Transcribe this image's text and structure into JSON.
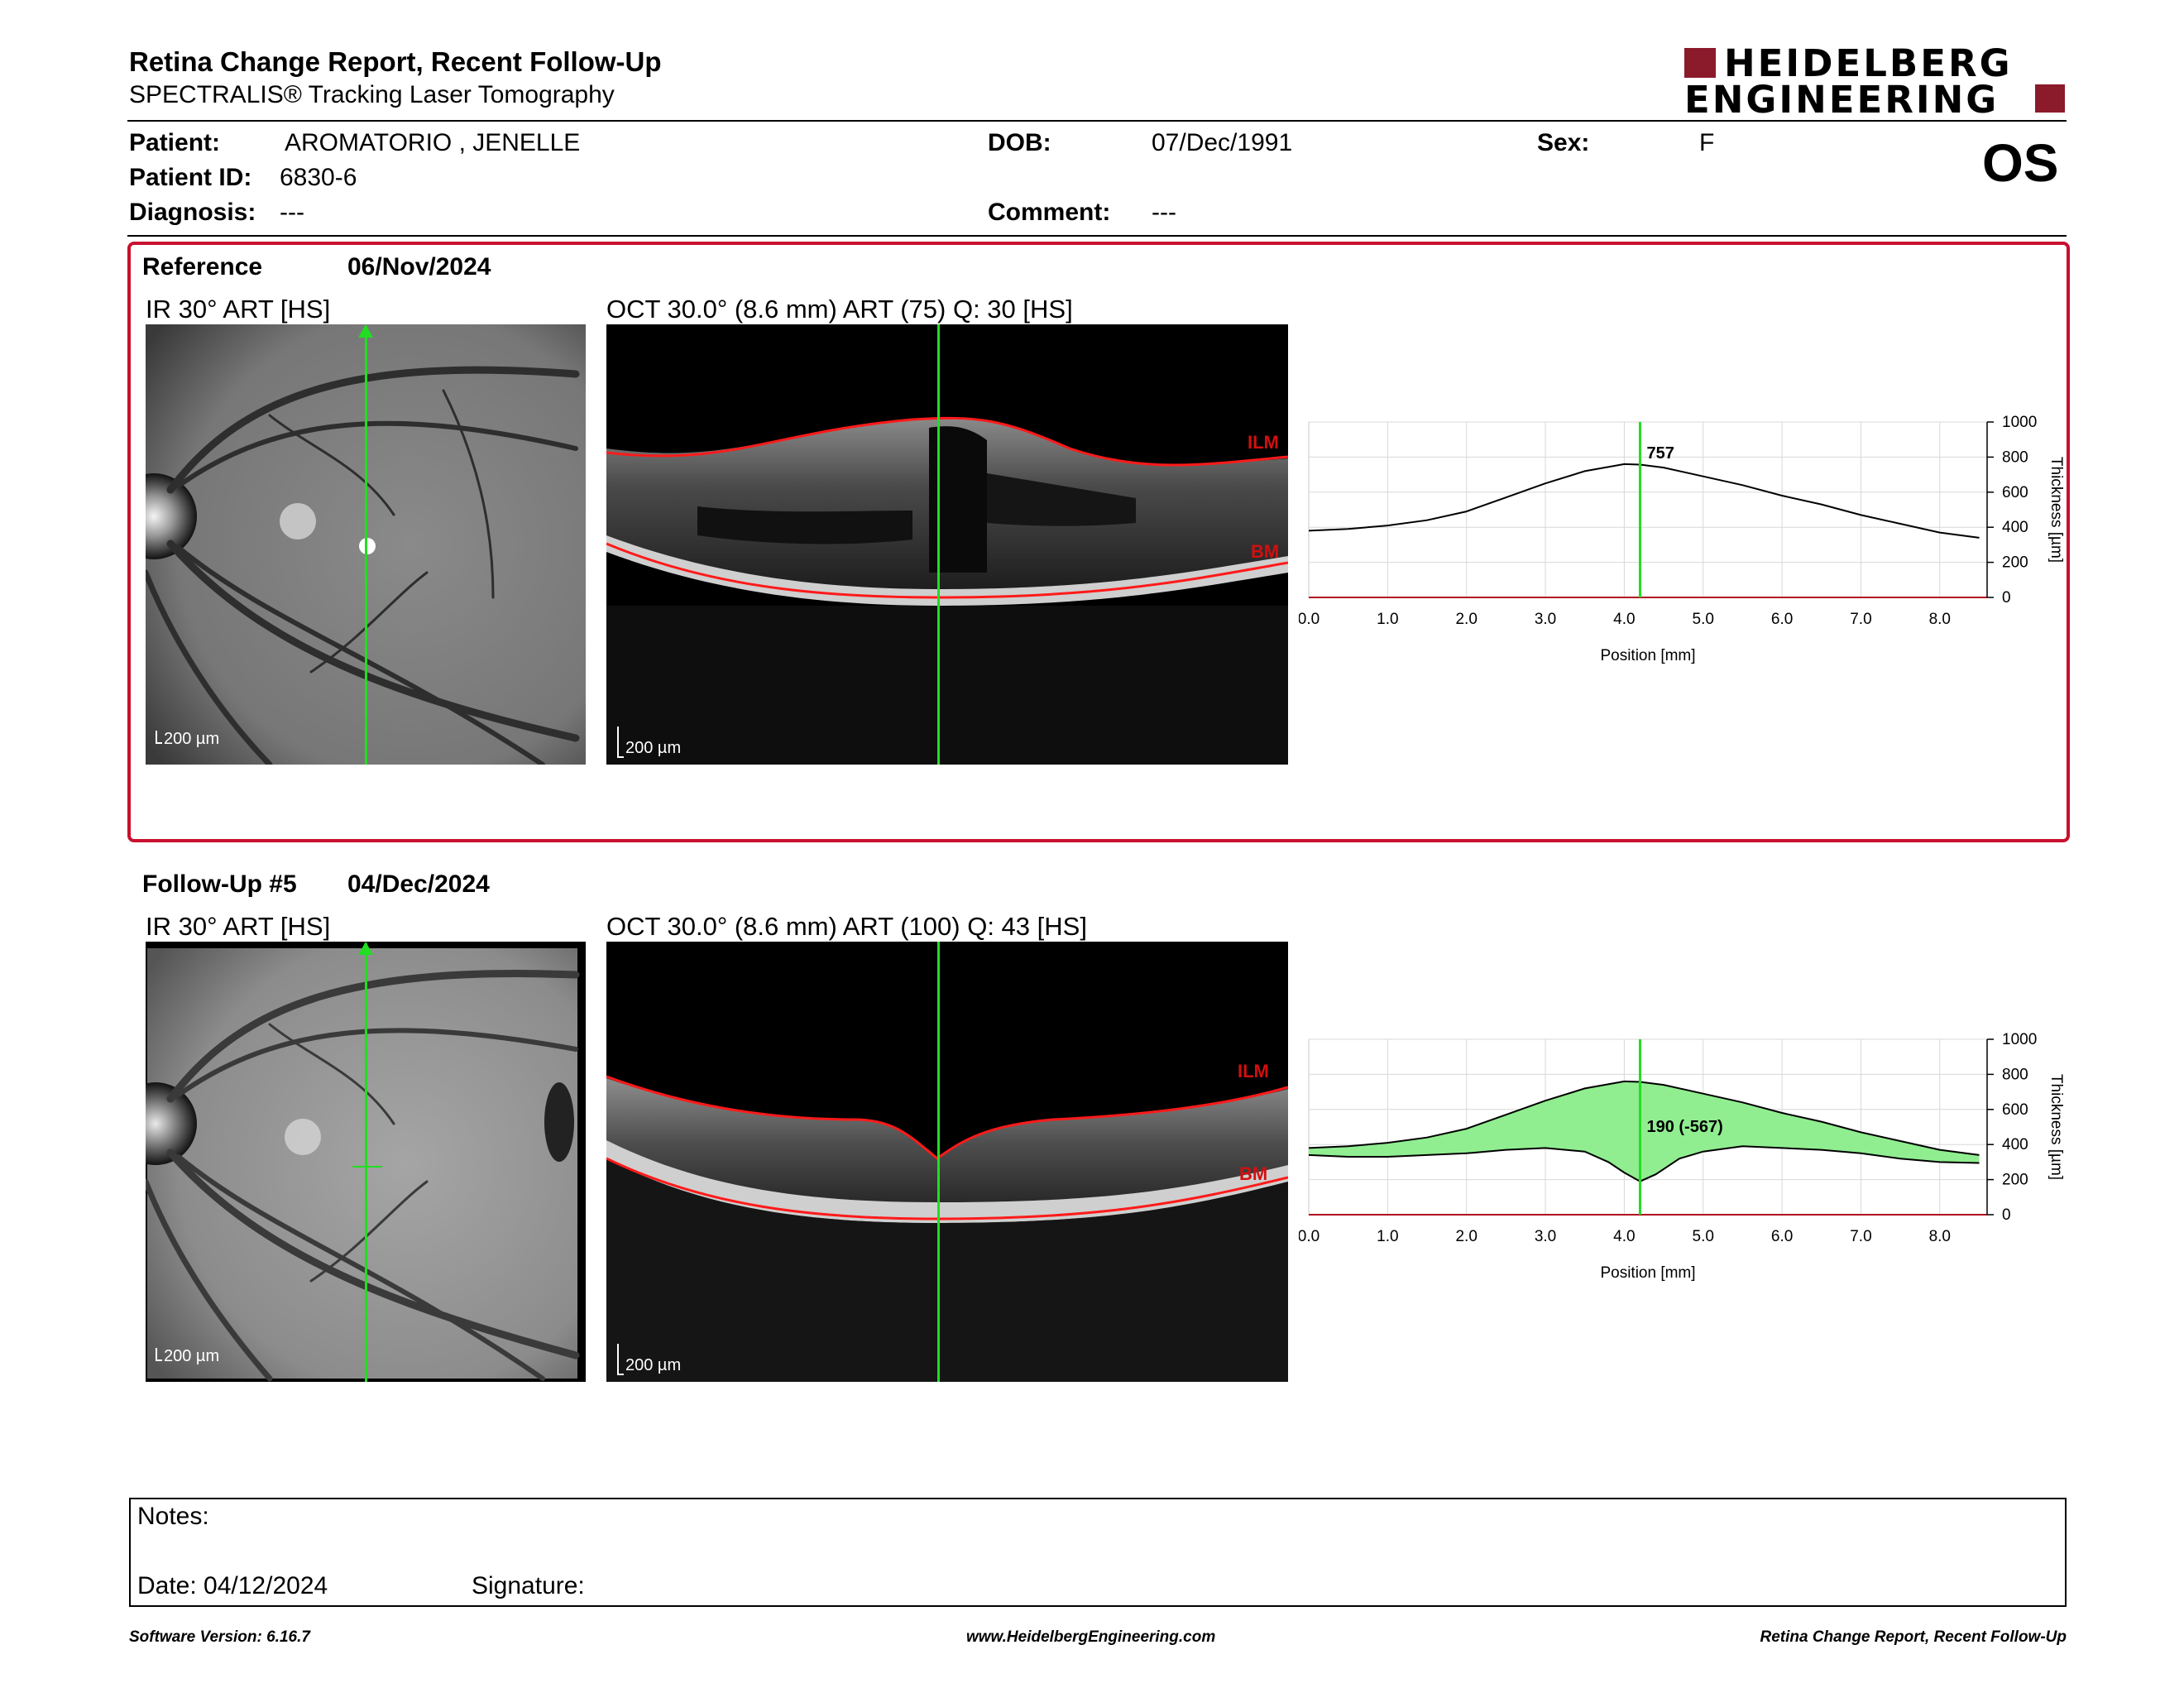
{
  "header": {
    "title": "Retina Change Report, Recent Follow-Up",
    "subtitle": "SPECTRALIS® Tracking Laser Tomography",
    "logo_line1": "HEIDELBERG",
    "logo_line2": "ENGINEERING",
    "eye": "OS"
  },
  "patient": {
    "patient_label": "Patient:",
    "patient_value": "AROMATORIO , JENELLE",
    "dob_label": "DOB:",
    "dob_value": "07/Dec/1991",
    "sex_label": "Sex:",
    "sex_value": "F",
    "id_label": "Patient ID:",
    "id_value": "6830-6",
    "diagnosis_label": "Diagnosis:",
    "diagnosis_value": "---",
    "comment_label": "Comment:",
    "comment_value": "---"
  },
  "reference": {
    "label": "Reference",
    "date": "06/Nov/2024",
    "ir_label": "IR 30° ART [HS]",
    "oct_label": "OCT 30.0° (8.6 mm) ART (75) Q: 30 [HS]",
    "scale_label": "200 µm",
    "layer_top": "ILM",
    "layer_bottom": "BM"
  },
  "followup": {
    "label": "Follow-Up #5",
    "date": "04/Dec/2024",
    "ir_label": "IR 30° ART [HS]",
    "oct_label": "OCT 30.0° (8.6 mm) ART (100) Q: 43 [HS]",
    "scale_label": "200 µm",
    "layer_top": "ILM",
    "layer_bottom": "BM"
  },
  "colors": {
    "accent_red": "#c8102e",
    "logo_red": "#8b1a2b",
    "marker_green": "#22dd22",
    "fill_green": "#90ee90"
  },
  "notes": {
    "notes_label": "Notes:",
    "date_label": "Date: 04/12/2024",
    "signature_label": "Signature:"
  },
  "footer": {
    "left": "Software Version: 6.16.7",
    "center": "www.HeidelbergEngineering.com",
    "right": "Retina Change Report, Recent Follow-Up"
  },
  "chart_data": [
    {
      "type": "line",
      "xlabel": "Position [mm]",
      "ylabel": "Thickness [µm]",
      "xlim": [
        0,
        8.6
      ],
      "ylim": [
        0,
        1000
      ],
      "x_ticks": [
        "0.0",
        "1.0",
        "2.0",
        "3.0",
        "4.0",
        "5.0",
        "6.0",
        "7.0",
        "8.0"
      ],
      "y_ticks": [
        "0",
        "200",
        "400",
        "600",
        "800",
        "1000"
      ],
      "grid": true,
      "marker_x": 4.2,
      "marker_label": "757",
      "series": [
        {
          "x": [
            0.0,
            0.5,
            1.0,
            1.5,
            2.0,
            2.5,
            3.0,
            3.5,
            4.0,
            4.2,
            4.5,
            5.0,
            5.5,
            6.0,
            6.5,
            7.0,
            7.5,
            8.0,
            8.5
          ],
          "values": [
            380,
            390,
            410,
            440,
            490,
            570,
            650,
            720,
            760,
            757,
            740,
            690,
            640,
            580,
            530,
            470,
            420,
            370,
            340
          ]
        }
      ]
    },
    {
      "type": "area",
      "xlabel": "Position [mm]",
      "ylabel": "Thickness [µm]",
      "xlim": [
        0,
        8.6
      ],
      "ylim": [
        0,
        1000
      ],
      "x_ticks": [
        "0.0",
        "1.0",
        "2.0",
        "3.0",
        "4.0",
        "5.0",
        "6.0",
        "7.0",
        "8.0"
      ],
      "y_ticks": [
        "0",
        "200",
        "400",
        "600",
        "800",
        "1000"
      ],
      "grid": true,
      "marker_x": 4.2,
      "marker_label": "190 (-567)",
      "series": [
        {
          "x": [
            0.0,
            0.5,
            1.0,
            1.5,
            2.0,
            2.5,
            3.0,
            3.5,
            4.0,
            4.2,
            4.5,
            5.0,
            5.5,
            6.0,
            6.5,
            7.0,
            7.5,
            8.0,
            8.5
          ],
          "values": [
            380,
            390,
            410,
            440,
            490,
            570,
            650,
            720,
            760,
            757,
            740,
            690,
            640,
            580,
            530,
            470,
            420,
            370,
            340
          ]
        },
        {
          "x": [
            0.0,
            0.5,
            1.0,
            1.5,
            2.0,
            2.5,
            3.0,
            3.5,
            3.8,
            4.0,
            4.2,
            4.4,
            4.7,
            5.0,
            5.5,
            6.0,
            6.5,
            7.0,
            7.5,
            8.0,
            8.5
          ],
          "values": [
            340,
            330,
            330,
            340,
            350,
            370,
            380,
            360,
            300,
            240,
            190,
            230,
            320,
            360,
            390,
            380,
            370,
            350,
            320,
            300,
            295
          ]
        }
      ]
    }
  ]
}
